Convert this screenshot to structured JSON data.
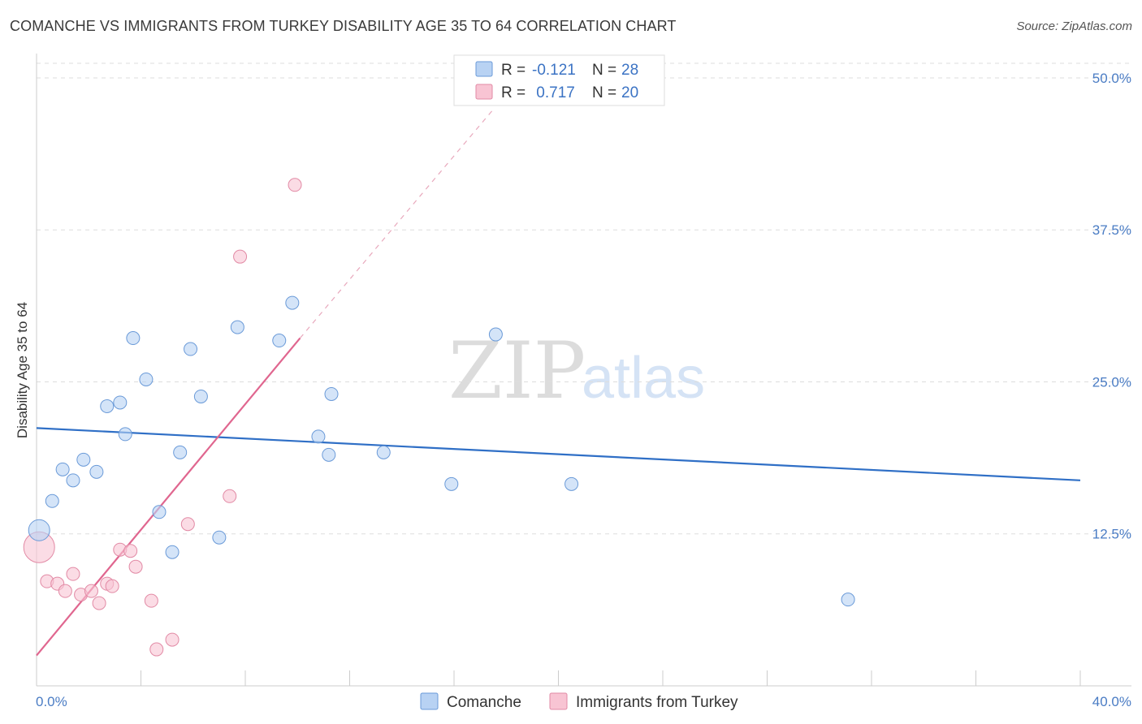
{
  "title": "COMANCHE VS IMMIGRANTS FROM TURKEY DISABILITY AGE 35 TO 64 CORRELATION CHART",
  "source": "Source: ZipAtlas.com",
  "watermark": {
    "zip": "ZIP",
    "atlas": "atlas"
  },
  "colors": {
    "comanche_fill": "#b8d2f3",
    "comanche_stroke": "#6a9ad8",
    "comanche_line": "#2f6fc6",
    "turkey_fill": "#f8c4d3",
    "turkey_stroke": "#e28aa5",
    "turkey_line": "#e0668f",
    "grid": "#dddddd"
  },
  "legend": {
    "rows": [
      {
        "r_label": "R =",
        "r_value": "-0.121",
        "n_label": "N =",
        "n_value": "28"
      },
      {
        "r_label": "R =",
        "r_value": " 0.717",
        "n_label": "N =",
        "n_value": "20"
      }
    ]
  },
  "chart_data": {
    "type": "scatter",
    "title": "COMANCHE VS IMMIGRANTS FROM TURKEY DISABILITY AGE 35 TO 64 CORRELATION CHART",
    "xlabel": "",
    "ylabel": "Disability Age 35 to 64",
    "xlim": [
      0,
      40
    ],
    "ylim": [
      0,
      52
    ],
    "x_tick_labels": [
      "0.0%",
      "40.0%"
    ],
    "y_ticks": [
      12.5,
      25.0,
      37.5,
      50.0
    ],
    "y_tick_labels": [
      "12.5%",
      "25.0%",
      "37.5%",
      "50.0%"
    ],
    "grid": true,
    "legend_position": "bottom-center",
    "series": [
      {
        "name": "Comanche",
        "points": [
          [
            0.1,
            12.8
          ],
          [
            0.6,
            15.2
          ],
          [
            1.0,
            17.8
          ],
          [
            1.4,
            16.9
          ],
          [
            1.8,
            18.6
          ],
          [
            2.3,
            17.6
          ],
          [
            2.7,
            23.0
          ],
          [
            3.2,
            23.3
          ],
          [
            3.4,
            20.7
          ],
          [
            3.7,
            28.6
          ],
          [
            4.2,
            25.2
          ],
          [
            4.7,
            14.3
          ],
          [
            5.2,
            11.0
          ],
          [
            5.5,
            19.2
          ],
          [
            5.9,
            27.7
          ],
          [
            6.3,
            23.8
          ],
          [
            7.0,
            12.2
          ],
          [
            7.7,
            29.5
          ],
          [
            9.3,
            28.4
          ],
          [
            9.8,
            31.5
          ],
          [
            10.8,
            20.5
          ],
          [
            11.2,
            19.0
          ],
          [
            11.3,
            24.0
          ],
          [
            13.3,
            19.2
          ],
          [
            15.9,
            16.6
          ],
          [
            17.6,
            28.9
          ],
          [
            20.5,
            16.6
          ],
          [
            31.1,
            7.1
          ]
        ],
        "trend": {
          "x": [
            0,
            40
          ],
          "y": [
            21.2,
            16.9
          ]
        }
      },
      {
        "name": "Immigrants from Turkey",
        "points": [
          [
            0.1,
            11.4
          ],
          [
            0.4,
            8.6
          ],
          [
            0.8,
            8.4
          ],
          [
            1.1,
            7.8
          ],
          [
            1.4,
            9.2
          ],
          [
            1.7,
            7.5
          ],
          [
            2.1,
            7.8
          ],
          [
            2.4,
            6.8
          ],
          [
            2.7,
            8.4
          ],
          [
            2.9,
            8.2
          ],
          [
            3.2,
            11.2
          ],
          [
            3.6,
            11.1
          ],
          [
            3.8,
            9.8
          ],
          [
            4.4,
            7.0
          ],
          [
            4.6,
            3.0
          ],
          [
            5.2,
            3.8
          ],
          [
            5.8,
            13.3
          ],
          [
            7.4,
            15.6
          ],
          [
            7.8,
            35.3
          ],
          [
            9.9,
            41.2
          ]
        ],
        "trend": {
          "x": [
            0,
            10.1
          ],
          "y": [
            2.5,
            28.6
          ]
        },
        "trend_extension": {
          "x": [
            10.1,
            17.5
          ],
          "y": [
            28.6,
            47.4
          ]
        }
      }
    ]
  },
  "bottom_legend": [
    {
      "label": "Comanche"
    },
    {
      "label": "Immigrants from Turkey"
    }
  ]
}
